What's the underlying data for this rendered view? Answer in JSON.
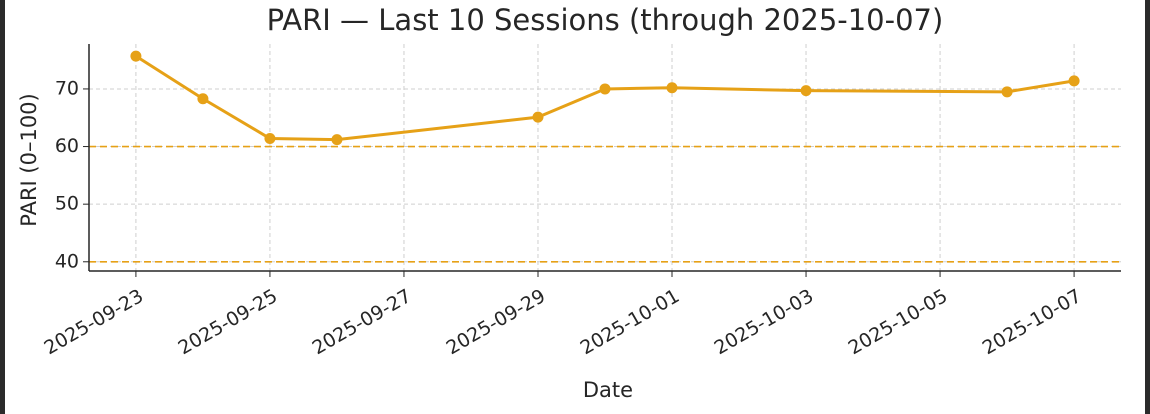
{
  "chart_data": {
    "type": "line",
    "title": "PARI — Last 10 Sessions (through 2025-10-07)",
    "x_label": "Date",
    "y_label": "PARI (0–100)",
    "x": [
      "2025-09-23",
      "2025-09-24",
      "2025-09-25",
      "2025-09-26",
      "2025-09-29",
      "2025-09-30",
      "2025-10-01",
      "2025-10-03",
      "2025-10-06",
      "2025-10-07"
    ],
    "series": [
      {
        "name": "PARI",
        "color": "#e6a117",
        "values": [
          75.7,
          68.3,
          61.4,
          61.2,
          65.1,
          70.0,
          70.2,
          69.7,
          69.5,
          71.4
        ]
      }
    ],
    "ylim": [
      38.4,
      77.8
    ],
    "yticks": [
      40,
      50,
      60,
      70
    ],
    "xticks": [
      "2025-09-23",
      "2025-09-25",
      "2025-09-27",
      "2025-09-29",
      "2025-10-01",
      "2025-10-03",
      "2025-10-05",
      "2025-10-07"
    ],
    "hlines": [
      60,
      40
    ],
    "hline_color": "#e6a117",
    "grid": true
  }
}
